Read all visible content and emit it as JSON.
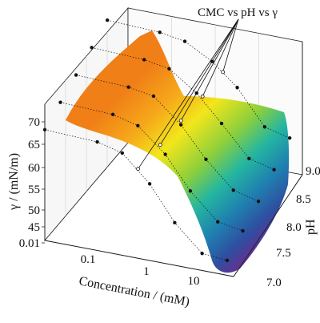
{
  "chart_data": {
    "type": "surface3d",
    "title": "",
    "annotation": "CMC vs pH vs γ",
    "xlabel": "Concentration / (mM)",
    "ylabel": "pH",
    "zlabel": "γ / (mN/m)",
    "x_scale": "log",
    "x_ticks": [
      "0.1",
      "1",
      "10"
    ],
    "y_ticks": [
      "7.0",
      "7.5",
      "8.0",
      "8.5",
      "9.0"
    ],
    "z_ticks": [
      "0.01",
      "45",
      "50",
      "55",
      "60",
      "65",
      "70"
    ],
    "y_range": [
      7.0,
      9.2
    ],
    "z_range": [
      45,
      70
    ],
    "colorscale": [
      "#6a2c8f",
      "#2f4ea0",
      "#1f7fb0",
      "#24b6a0",
      "#8fd03a",
      "#f2e61b",
      "#f6a91a",
      "#f07f17"
    ],
    "series": [
      {
        "name": "pH 7.0",
        "pH": 7.0,
        "points": [
          [
            0.01,
            66.0
          ],
          [
            0.1,
            65.5
          ],
          [
            0.3,
            64.0
          ],
          [
            1,
            58.0
          ],
          [
            3,
            50.0
          ],
          [
            10,
            44.0
          ],
          [
            30,
            43.5
          ]
        ]
      },
      {
        "name": "pH 7.5",
        "pH": 7.5,
        "points": [
          [
            0.01,
            67.0
          ],
          [
            0.1,
            66.5
          ],
          [
            0.3,
            65.0
          ],
          [
            1,
            59.5
          ],
          [
            3,
            52.0
          ],
          [
            10,
            46.0
          ],
          [
            30,
            45.0
          ]
        ]
      },
      {
        "name": "pH 8.0",
        "pH": 8.0,
        "points": [
          [
            0.01,
            68.0
          ],
          [
            0.1,
            67.5
          ],
          [
            0.3,
            66.5
          ],
          [
            1,
            61.0
          ],
          [
            3,
            54.0
          ],
          [
            10,
            48.0
          ],
          [
            30,
            46.5
          ]
        ]
      },
      {
        "name": "pH 8.5",
        "pH": 8.5,
        "points": [
          [
            0.01,
            69.0
          ],
          [
            0.1,
            68.5
          ],
          [
            0.3,
            67.5
          ],
          [
            1,
            63.0
          ],
          [
            3,
            57.0
          ],
          [
            10,
            50.0
          ],
          [
            30,
            48.5
          ]
        ]
      },
      {
        "name": "pH 9.0",
        "pH": 9.0,
        "points": [
          [
            0.01,
            70.0
          ],
          [
            0.1,
            69.5
          ],
          [
            0.3,
            68.5
          ],
          [
            1,
            65.0
          ],
          [
            3,
            60.0
          ],
          [
            10,
            52.0
          ],
          [
            30,
            50.5
          ]
        ]
      }
    ],
    "cmc_points": [
      [
        0.6,
        7.0,
        61.0
      ],
      [
        0.8,
        7.5,
        61.5
      ],
      [
        1.0,
        8.0,
        62.0
      ],
      [
        1.3,
        8.5,
        62.5
      ],
      [
        1.6,
        9.0,
        63.0
      ]
    ],
    "grid": true
  }
}
